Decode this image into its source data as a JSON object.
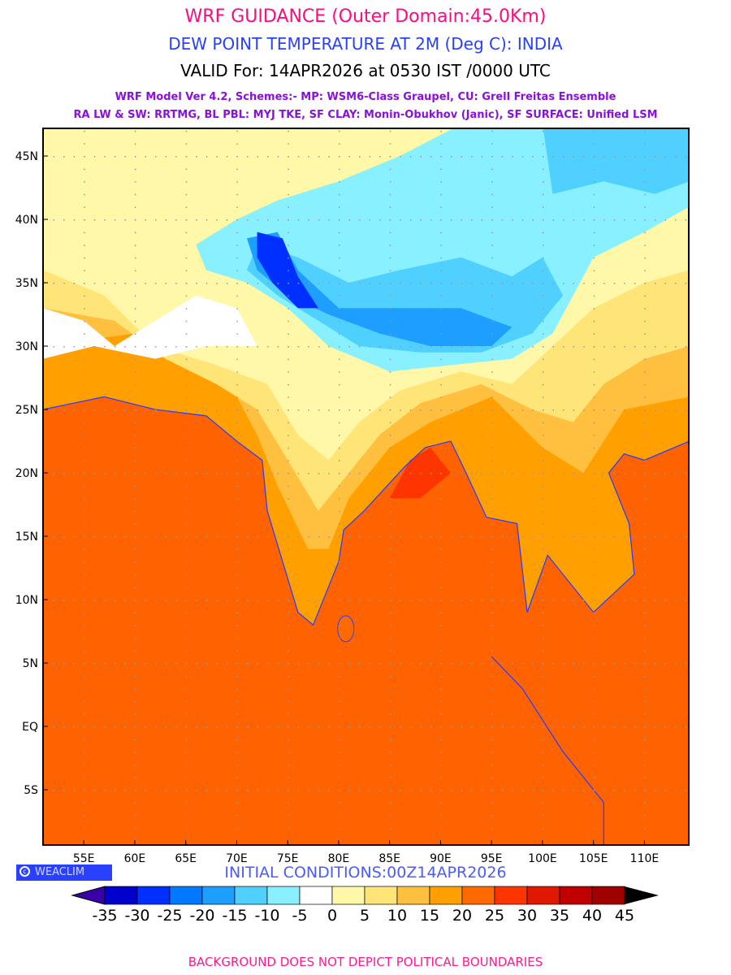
{
  "header": {
    "title": "WRF GUIDANCE (Outer Domain:45.0Km)",
    "subtitle": "DEW POINT TEMPERATURE AT 2M (Deg C): INDIA",
    "valid": "VALID For: 14APR2026 at 0530 IST /0000 UTC",
    "model_line1": "WRF Model Ver 4.2, Schemes:- MP: WSM6-Class Graupel, CU: Grell Freitas Ensemble",
    "model_line2": "RA LW & SW: RRTMG, BL PBL: MYJ TKE, SF CLAY: Monin-Obukhov (Janic), SF SURFACE: Unified LSM"
  },
  "map": {
    "lat_labels": [
      "45N",
      "40N",
      "35N",
      "30N",
      "25N",
      "20N",
      "15N",
      "10N",
      "5N",
      "EQ",
      "5S"
    ],
    "lat_values": [
      45,
      40,
      35,
      30,
      25,
      20,
      15,
      10,
      5,
      0,
      -5
    ],
    "lon_labels": [
      "55E",
      "60E",
      "65E",
      "70E",
      "75E",
      "80E",
      "85E",
      "90E",
      "95E",
      "100E",
      "105E",
      "110E"
    ],
    "lon_values": [
      55,
      60,
      65,
      70,
      75,
      80,
      85,
      90,
      95,
      100,
      105,
      110
    ],
    "lon_range": [
      51,
      114.4
    ],
    "lat_range": [
      -9.5,
      47.2
    ]
  },
  "branding": {
    "logo_text": "WEACLIM",
    "copyright_icon": "copyright-icon"
  },
  "initial_conditions": "INITIAL CONDITIONS:00Z14APR2026",
  "colorbar": {
    "labels": [
      "-35",
      "-30",
      "-25",
      "-20",
      "-15",
      "-10",
      "-5",
      "0",
      "5",
      "10",
      "15",
      "20",
      "25",
      "30",
      "35",
      "40",
      "45"
    ],
    "low_color": "#3a00a8",
    "colors": [
      "#0000cd",
      "#0030ff",
      "#0078ff",
      "#1e9eff",
      "#50d0ff",
      "#88f0ff",
      "#ffffff",
      "#fff8a8",
      "#ffe478",
      "#ffc040",
      "#ffa000",
      "#ff6a00",
      "#ff3500",
      "#e01800",
      "#c00000",
      "#a00000"
    ],
    "high_color": "#000000"
  },
  "footer": "BACKGROUND DOES NOT DEPICT POLITICAL BOUNDARIES"
}
